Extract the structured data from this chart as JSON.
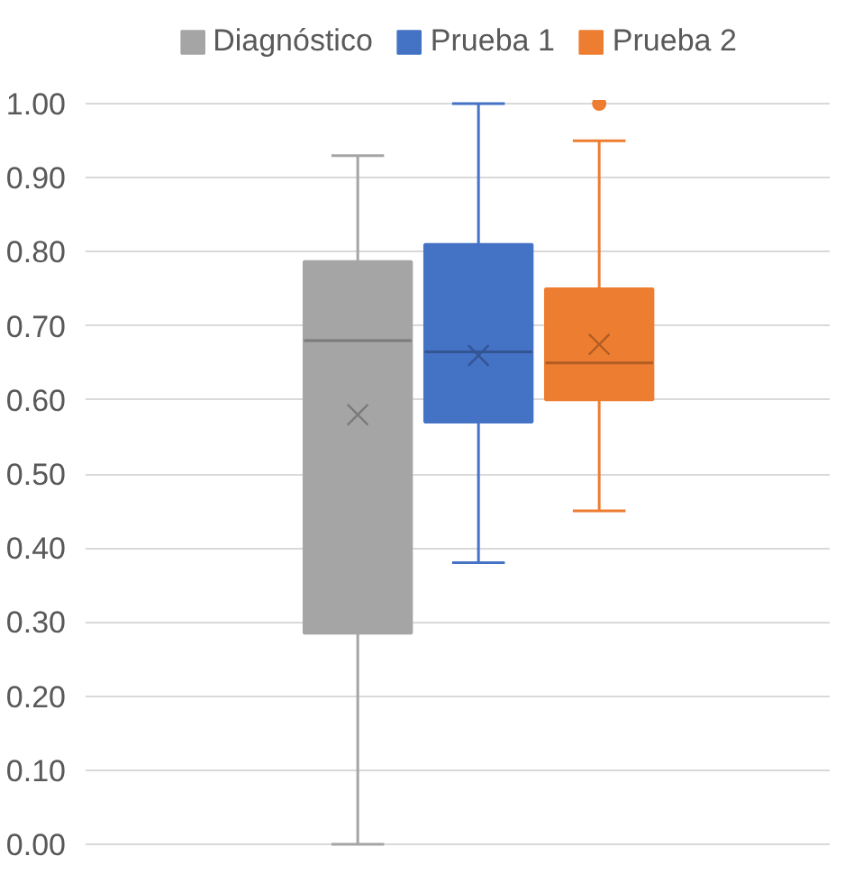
{
  "chart_data": {
    "type": "box",
    "categories": [
      null
    ],
    "series": [
      {
        "name": "Diagnóstico",
        "color": "#a5a5a5",
        "boxes": [
          {
            "low": 0.0,
            "q1": 0.285,
            "median": 0.68,
            "q3": 0.787,
            "high": 0.93,
            "mean": 0.58
          }
        ]
      },
      {
        "name": "Prueba 1",
        "color": "#4472c4",
        "boxes": [
          {
            "low": 0.38,
            "q1": 0.57,
            "median": 0.665,
            "q3": 0.81,
            "high": 1.0,
            "mean": 0.66
          }
        ]
      },
      {
        "name": "Prueba 2",
        "color": "#ed7d31",
        "boxes": [
          {
            "low": 0.45,
            "q1": 0.6,
            "median": 0.65,
            "q3": 0.75,
            "high": 0.95,
            "mean": 0.675,
            "outliers": [
              1.0
            ]
          }
        ]
      }
    ],
    "ylim": [
      0,
      1
    ],
    "yticks": [
      {
        "value": 0,
        "label": "0.00"
      },
      {
        "value": 0.1,
        "label": "0.10"
      },
      {
        "value": 0.2,
        "label": "0.20"
      },
      {
        "value": 0.3,
        "label": "0.30"
      },
      {
        "value": 0.4,
        "label": "0.40"
      },
      {
        "value": 0.5,
        "label": "0.50"
      },
      {
        "value": 0.6,
        "label": "0.60"
      },
      {
        "value": 0.7,
        "label": "0.70"
      },
      {
        "value": 0.8,
        "label": "0.80"
      },
      {
        "value": 0.9,
        "label": "0.90"
      },
      {
        "value": 1.0,
        "label": "1.00"
      }
    ],
    "grid": "y",
    "legend": "top"
  }
}
